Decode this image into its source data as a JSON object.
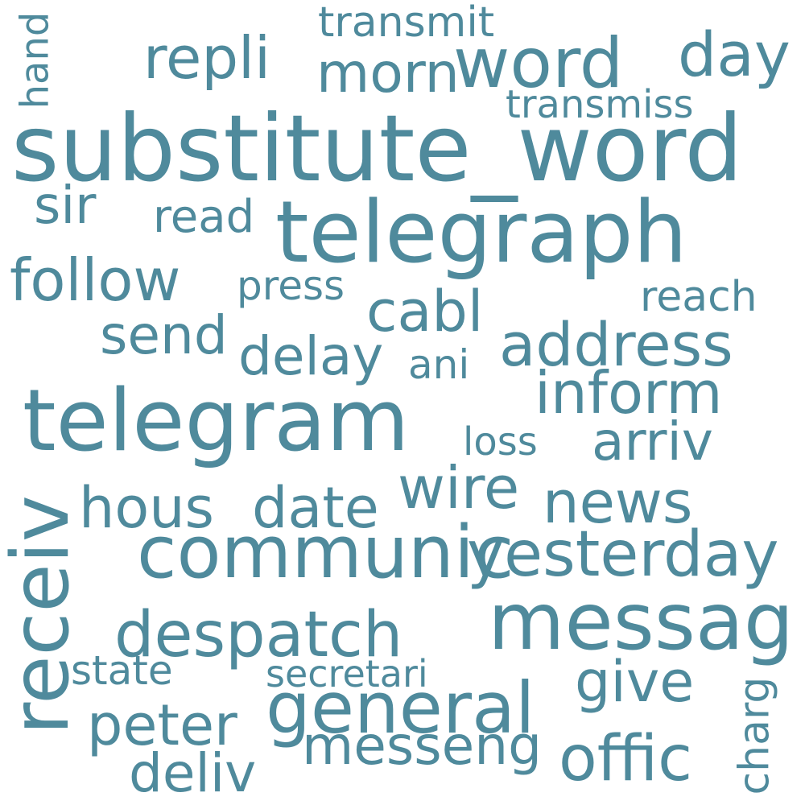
{
  "color": "#4f8a9c",
  "words": {
    "substitute_word": "substitute_word",
    "telegraph": "telegraph",
    "telegram": "telegram",
    "communic": "communic",
    "messag": "messag",
    "general": "general",
    "receiv": "receiv",
    "word": "word",
    "repli": "repli",
    "morn": "morn",
    "day": "day",
    "transmit": "transmit",
    "transmiss": "transmiss",
    "hand": "hand",
    "sir": "sir",
    "read": "read",
    "follow": "follow",
    "press": "press",
    "cabl": "cabl",
    "reach": "reach",
    "send": "send",
    "delay": "delay",
    "address": "address",
    "ani": "ani",
    "inform": "inform",
    "arriv": "arriv",
    "loss": "loss",
    "hous": "hous",
    "date": "date",
    "wire": "wire",
    "news": "news",
    "yesterday": "yesterday",
    "despatch": "despatch",
    "state": "state",
    "secretari": "secretari",
    "give": "give",
    "charg": "charg",
    "peter": "peter",
    "messeng": "messeng",
    "offic": "offic",
    "deliv": "deliv"
  }
}
